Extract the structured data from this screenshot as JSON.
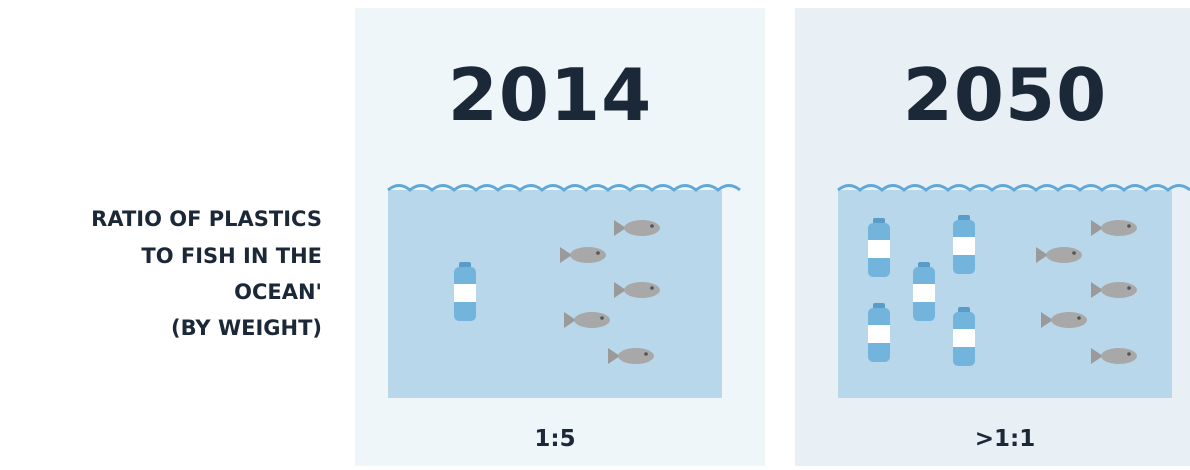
{
  "row_label": {
    "lines": [
      "RATIO OF PLASTICS",
      "TO FISH IN THE",
      "OCEAN'",
      "(BY WEIGHT)"
    ]
  },
  "panels": [
    {
      "year": "2014",
      "ratio": "1:5"
    },
    {
      "year": "2050",
      "ratio": ">1:1"
    }
  ]
}
